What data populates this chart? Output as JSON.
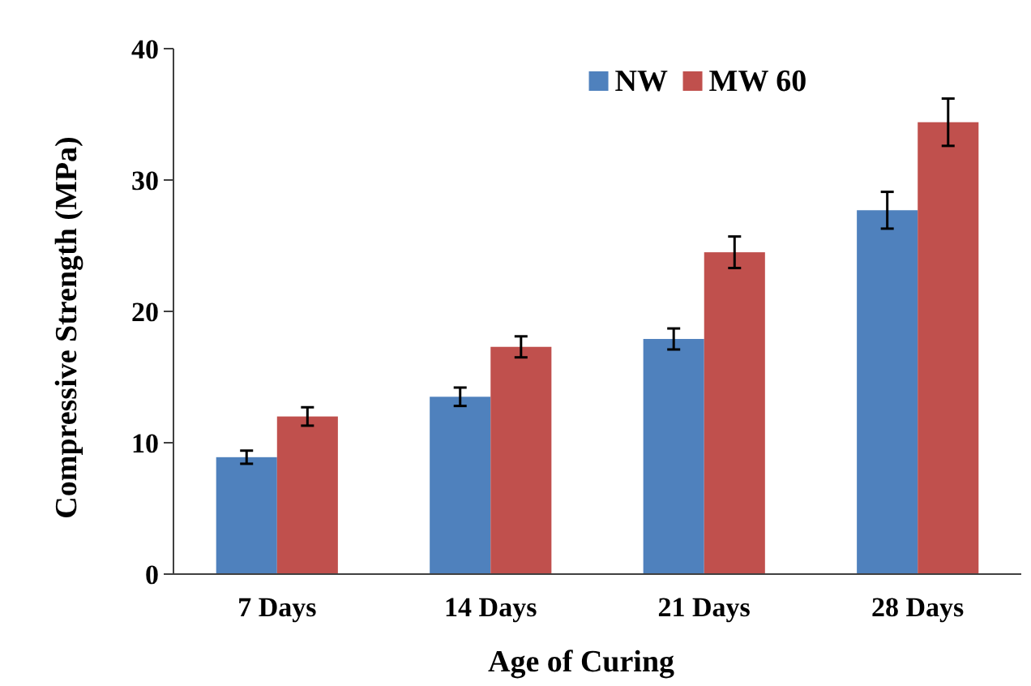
{
  "chart_data": {
    "type": "bar",
    "xlabel": "Age of Curing",
    "ylabel": "Compressive Strength (MPa)",
    "categories": [
      "7 Days",
      "14 Days",
      "21 Days",
      "28 Days"
    ],
    "series": [
      {
        "name": "NW",
        "color": "#4f81bd",
        "values": [
          8.9,
          13.5,
          17.9,
          27.7
        ],
        "errors": [
          0.5,
          0.7,
          0.8,
          1.4
        ]
      },
      {
        "name": "MW 60",
        "color": "#c0504d",
        "values": [
          12.0,
          17.3,
          24.5,
          34.4
        ],
        "errors": [
          0.7,
          0.8,
          1.2,
          1.8
        ]
      }
    ],
    "ylim": [
      0,
      40
    ],
    "yticks": [
      0,
      10,
      20,
      30,
      40
    ],
    "grid": false,
    "legend": "top right"
  }
}
